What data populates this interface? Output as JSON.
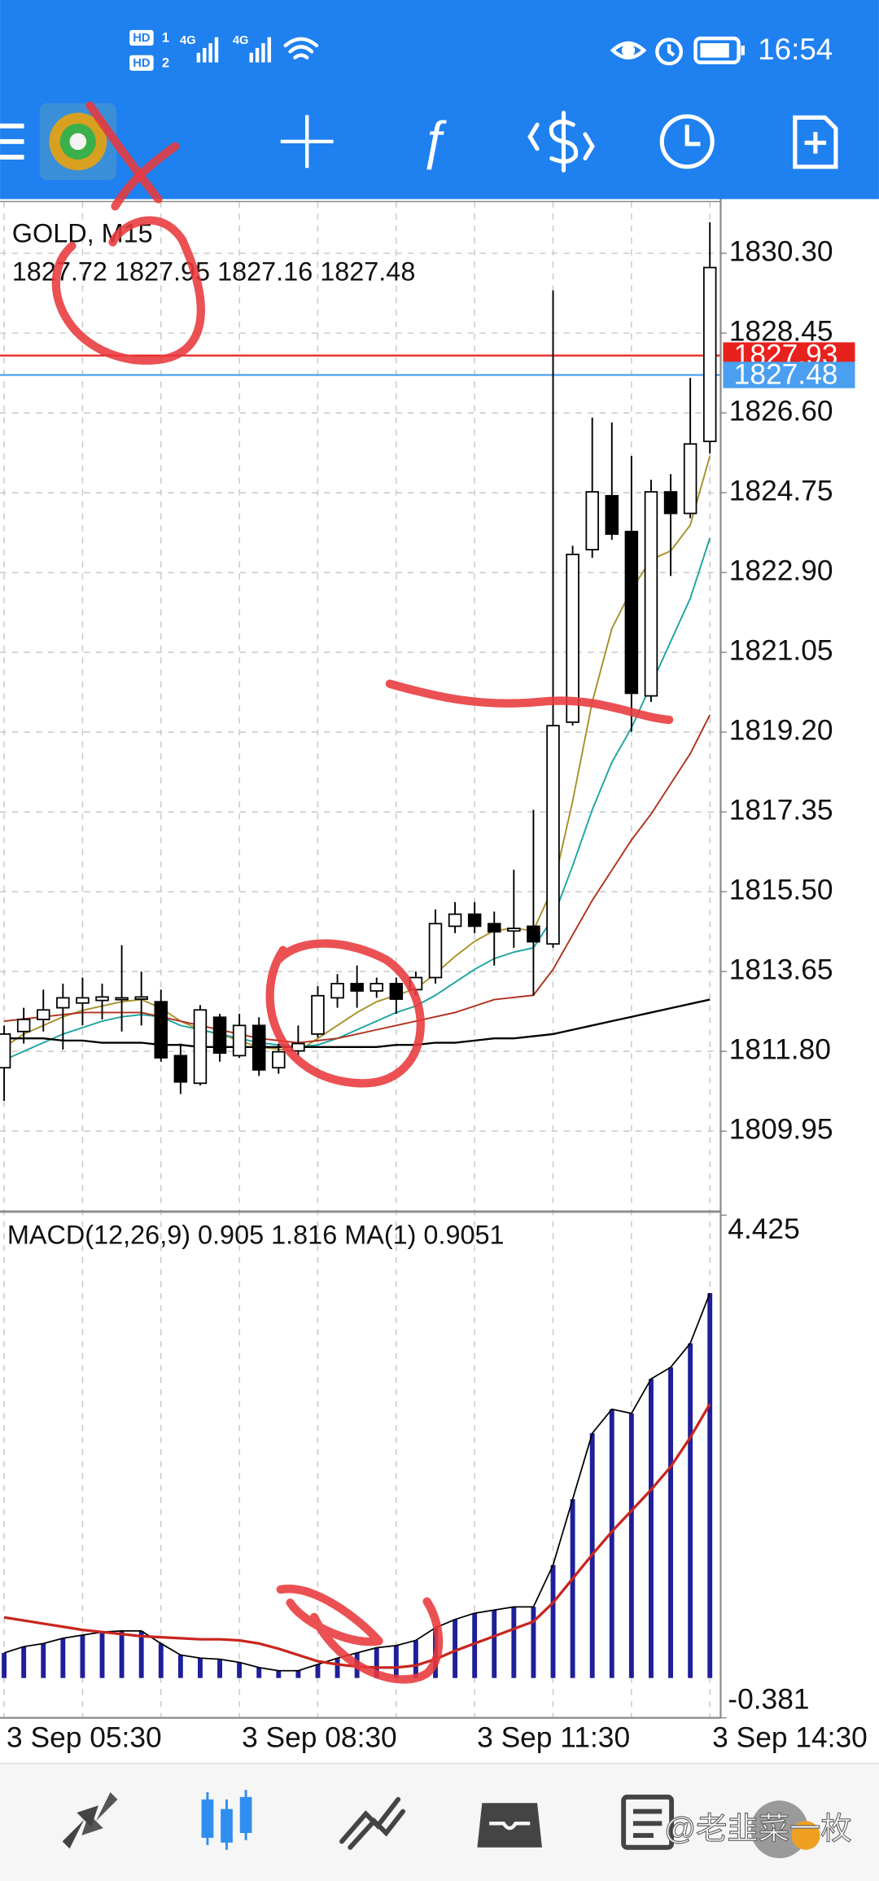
{
  "status_bar": {
    "time": "16:54",
    "sim_badges": [
      "HD",
      "HD"
    ],
    "sim_numbers": [
      "1",
      "2"
    ],
    "network": [
      "4G",
      "4G"
    ]
  },
  "chart_data": [
    {
      "type": "candlestick",
      "title": "GOLD, M15",
      "subtitle": "1827.72 1827.95 1827.16 1827.48",
      "categories": [
        "3 Sep 05:30",
        null,
        null,
        null,
        null,
        null,
        null,
        null,
        null,
        null,
        null,
        null,
        "3 Sep 08:30",
        null,
        null,
        null,
        null,
        null,
        null,
        null,
        null,
        null,
        null,
        null,
        "3 Sep 11:30",
        null,
        null,
        null,
        null,
        null,
        null,
        null,
        null,
        null,
        null,
        null,
        "3 Sep 14:30"
      ],
      "open": [
        1811.42,
        1812.26,
        1812.54,
        1812.81,
        1812.92,
        1812.98,
        1813.01,
        1813.01,
        1812.95,
        1811.7,
        1811.06,
        1812.59,
        1811.7,
        1812.4,
        1811.42,
        1811.81,
        1812.2,
        1813.04,
        1813.37,
        1813.2,
        1813.37,
        1813.23,
        1813.51,
        1814.7,
        1814.98,
        1814.76,
        1814.59,
        1814.7,
        1814.29,
        1819.43,
        1823.43,
        1824.68,
        1823.85,
        1820.04,
        1824.77,
        1824.27,
        1825.94
      ],
      "high": [
        1812.4,
        1812.81,
        1813.23,
        1813.37,
        1813.51,
        1813.37,
        1814.26,
        1813.65,
        1813.23,
        1811.98,
        1812.87,
        1812.67,
        1812.67,
        1812.59,
        1811.98,
        1812.4,
        1813.31,
        1813.59,
        1813.79,
        1813.51,
        1813.51,
        1813.65,
        1815.09,
        1815.26,
        1815.26,
        1815.04,
        1816.01,
        1817.4,
        1829.44,
        1823.52,
        1826.49,
        1826.38,
        1825.6,
        1825.05,
        1825.18,
        1827.41,
        1831.02
      ],
      "low": [
        1810.65,
        1811.98,
        1812.26,
        1811.84,
        1812.4,
        1812.54,
        1812.26,
        1812.4,
        1811.56,
        1810.81,
        1811.01,
        1811.56,
        1811.65,
        1811.23,
        1811.28,
        1811.7,
        1812.12,
        1812.81,
        1812.81,
        1813.04,
        1812.67,
        1813.09,
        1813.37,
        1814.54,
        1814.54,
        1813.79,
        1814.2,
        1813.09,
        1814.2,
        1819.35,
        1823.24,
        1823.66,
        1819.21,
        1819.9,
        1822.82,
        1824.16,
        1825.66
      ],
      "close": [
        1812.2,
        1812.54,
        1812.76,
        1813.04,
        1813.04,
        1813.06,
        1813.04,
        1813.06,
        1811.65,
        1811.09,
        1812.76,
        1811.76,
        1812.4,
        1811.37,
        1811.79,
        1811.98,
        1813.09,
        1813.37,
        1813.2,
        1813.37,
        1813.01,
        1813.51,
        1814.76,
        1814.98,
        1814.7,
        1814.57,
        1814.65,
        1814.34,
        1819.35,
        1823.32,
        1824.77,
        1823.79,
        1820.1,
        1824.77,
        1824.27,
        1825.88,
        1829.97
      ],
      "up_color": "#ffffff",
      "down_color": "#000000",
      "series": [
        {
          "color": "#a8902a",
          "values": [
            1811.9,
            1812.2,
            1812.4,
            1812.6,
            1812.75,
            1812.85,
            1812.95,
            1813.0,
            1812.8,
            1812.5,
            1812.3,
            1812.2,
            1812.05,
            1811.9,
            1811.85,
            1811.8,
            1812.1,
            1812.4,
            1812.7,
            1812.95,
            1813.1,
            1813.25,
            1813.6,
            1814.0,
            1814.35,
            1814.6,
            1814.65,
            1814.6,
            1815.6,
            1817.6,
            1819.9,
            1821.6,
            1822.5,
            1823.2,
            1823.4,
            1824.0,
            1825.6
          ]
        },
        {
          "color": "#1fa3a3",
          "values": [
            1811.6,
            1811.8,
            1812.0,
            1812.2,
            1812.35,
            1812.5,
            1812.6,
            1812.65,
            1812.6,
            1812.4,
            1812.3,
            1812.2,
            1812.1,
            1812.0,
            1811.95,
            1811.9,
            1811.95,
            1812.1,
            1812.3,
            1812.5,
            1812.7,
            1812.85,
            1813.1,
            1813.4,
            1813.7,
            1813.95,
            1814.1,
            1814.2,
            1814.9,
            1816.1,
            1817.4,
            1818.5,
            1819.3,
            1820.3,
            1821.3,
            1822.3,
            1823.7
          ]
        },
        {
          "color": "#b0301e",
          "values": [
            1812.5,
            1812.55,
            1812.6,
            1812.65,
            1812.7,
            1812.7,
            1812.7,
            1812.7,
            1812.6,
            1812.5,
            1812.4,
            1812.3,
            1812.2,
            1812.1,
            1812.05,
            1812.0,
            1812.05,
            1812.1,
            1812.2,
            1812.3,
            1812.4,
            1812.5,
            1812.6,
            1812.7,
            1812.85,
            1813.0,
            1813.05,
            1813.1,
            1813.7,
            1814.5,
            1815.3,
            1816.0,
            1816.7,
            1817.3,
            1818.0,
            1818.7,
            1819.6
          ]
        },
        {
          "color": "#000000",
          "values": [
            1812.1,
            1812.1,
            1812.1,
            1812.05,
            1812.05,
            1812.0,
            1812.0,
            1812.0,
            1811.95,
            1811.95,
            1811.9,
            1811.9,
            1811.9,
            1811.9,
            1811.9,
            1811.9,
            1811.9,
            1811.9,
            1811.9,
            1811.9,
            1811.95,
            1811.95,
            1812.0,
            1812.0,
            1812.05,
            1812.1,
            1812.1,
            1812.15,
            1812.2,
            1812.3,
            1812.4,
            1812.5,
            1812.6,
            1812.7,
            1812.8,
            1812.9,
            1813.0
          ]
        }
      ],
      "price_labels": [
        {
          "value": 1827.93,
          "color": "#e8211d"
        },
        {
          "value": 1827.48,
          "color": "#4a9ff0"
        }
      ],
      "ylim": [
        1808.14,
        1831.5
      ],
      "yticks": [
        {
          "value": 1830.3,
          "label": "1830.30"
        },
        1828.45,
        {
          "value": 1826.6,
          "label": "1826.60"
        },
        1824.75,
        {
          "value": 1822.9,
          "label": "1822.90"
        },
        1821.05,
        {
          "value": 1819.2,
          "label": "1819.20"
        },
        1817.35,
        {
          "value": 1815.5,
          "label": "1815.50"
        },
        1813.65,
        {
          "value": 1811.8,
          "label": "1811.80"
        },
        1809.95
      ],
      "grid": true
    },
    {
      "type": "macd",
      "title": "MACD(12,26,9) 0.905 1.816 MA(1) 0.9051",
      "histogram": {
        "color": "#1f1f9a",
        "values": [
          0.24,
          0.3,
          0.33,
          0.38,
          0.41,
          0.44,
          0.45,
          0.45,
          0.33,
          0.22,
          0.19,
          0.18,
          0.15,
          0.1,
          0.07,
          0.07,
          0.13,
          0.19,
          0.24,
          0.29,
          0.31,
          0.36,
          0.48,
          0.56,
          0.62,
          0.65,
          0.68,
          0.68,
          1.08,
          1.71,
          2.34,
          2.57,
          2.53,
          2.86,
          2.97,
          3.2,
          3.68
        ]
      },
      "signal": {
        "color": "#c8251e",
        "values": [
          0.58,
          0.55,
          0.52,
          0.49,
          0.46,
          0.44,
          0.42,
          0.4,
          0.39,
          0.38,
          0.37,
          0.37,
          0.36,
          0.33,
          0.28,
          0.22,
          0.16,
          0.13,
          0.11,
          0.1,
          0.1,
          0.12,
          0.18,
          0.26,
          0.33,
          0.4,
          0.47,
          0.54,
          0.72,
          0.95,
          1.18,
          1.4,
          1.6,
          1.8,
          2.02,
          2.3,
          2.62
        ]
      },
      "ylim": [
        -0.381,
        4.425
      ],
      "yticks": [
        4.425,
        -0.381
      ]
    }
  ],
  "watermark": "@老韭菜一枚"
}
